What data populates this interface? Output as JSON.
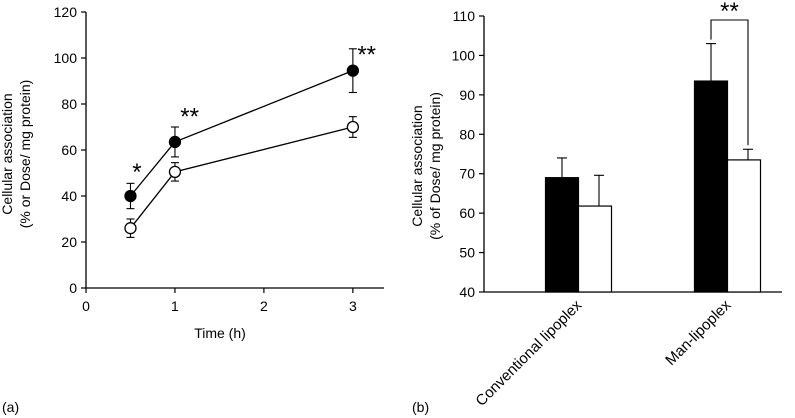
{
  "chart_data": [
    {
      "type": "line",
      "panel_label": "(a)",
      "xlabel": "Time (h)",
      "ylabel_line1": "Cellular association",
      "ylabel_line2": "(% or Dose/ mg protein)",
      "xlim": [
        0,
        3.35
      ],
      "ylim": [
        0,
        120
      ],
      "xticks": [
        0,
        1,
        2,
        3
      ],
      "yticks": [
        0,
        20,
        40,
        60,
        80,
        100,
        120
      ],
      "grid": false,
      "series": [
        {
          "marker": "filled-circle",
          "color": "#000000",
          "x": [
            0.5,
            1,
            3
          ],
          "y": [
            40,
            63.5,
            94.5
          ],
          "err": [
            5.5,
            6.5,
            9.5
          ]
        },
        {
          "marker": "open-circle",
          "color": "#ffffff",
          "x": [
            0.5,
            1,
            3
          ],
          "y": [
            26,
            50.5,
            70
          ],
          "err": [
            4,
            4,
            4.5
          ]
        }
      ],
      "annotations": [
        {
          "text": "*",
          "x": 0.52,
          "y": 47
        },
        {
          "text": "**",
          "x": 1.06,
          "y": 71
        },
        {
          "text": "**",
          "x": 3.05,
          "y": 98
        }
      ]
    },
    {
      "type": "bar",
      "panel_label": "(b)",
      "ylabel_line1": "Cellular association",
      "ylabel_line2": "(% of Dose/ mg protein)",
      "categories": [
        "Conventional lipoplex",
        "Man-lipoplex"
      ],
      "ylim": [
        40,
        110
      ],
      "yticks": [
        40,
        50,
        60,
        70,
        80,
        90,
        100,
        110
      ],
      "grid": false,
      "series": [
        {
          "color": "#000000",
          "values": [
            69,
            93.5
          ],
          "err": [
            5,
            9.5
          ]
        },
        {
          "color": "#ffffff",
          "values": [
            61.8,
            73.5
          ],
          "err": [
            7.8,
            2.7
          ]
        }
      ],
      "annotations": [
        {
          "text": "**",
          "category": "Man-lipoplex"
        }
      ]
    }
  ]
}
